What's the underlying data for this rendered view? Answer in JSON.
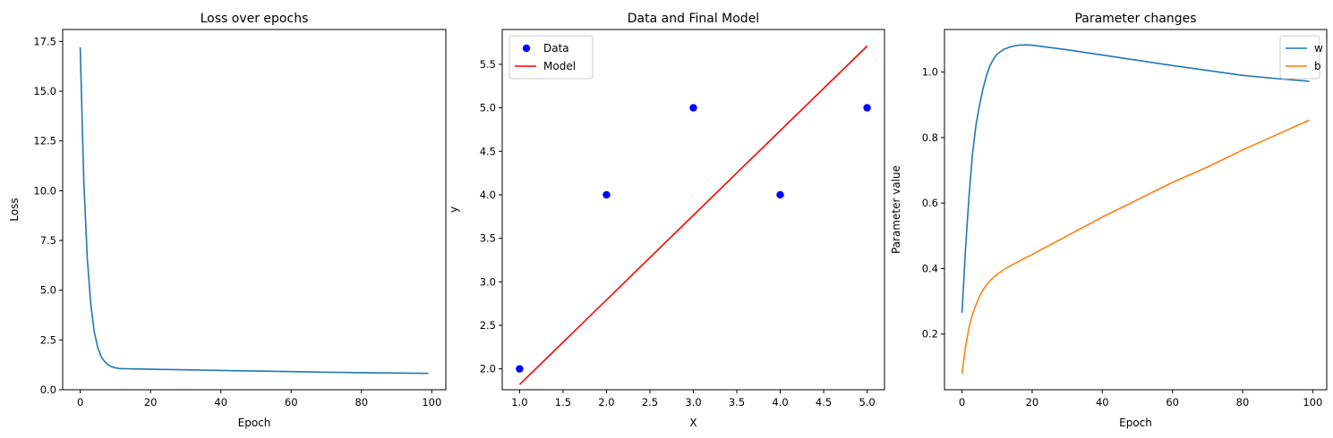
{
  "chart_data": [
    {
      "type": "line",
      "title": "Loss over epochs",
      "xlabel": "Epoch",
      "ylabel": "Loss",
      "xlim": [
        -5,
        104
      ],
      "ylim": [
        0,
        18.1
      ],
      "xticks": [
        0,
        20,
        40,
        60,
        80,
        100
      ],
      "yticks": [
        0.0,
        2.5,
        5.0,
        7.5,
        10.0,
        12.5,
        15.0,
        17.5
      ],
      "xtick_labels": [
        "0",
        "20",
        "40",
        "60",
        "80",
        "100"
      ],
      "ytick_labels": [
        "0.0",
        "2.5",
        "5.0",
        "7.5",
        "10.0",
        "12.5",
        "15.0",
        "17.5"
      ],
      "colors": {
        "loss": "#1f77b4"
      },
      "series": [
        {
          "key": "loss",
          "x": [
            0,
            1,
            2,
            3,
            4,
            5,
            6,
            7,
            8,
            9,
            10,
            11,
            12,
            13,
            14,
            15,
            20,
            30,
            40,
            50,
            60,
            70,
            80,
            90,
            99
          ],
          "values": [
            17.2,
            10.5,
            6.6,
            4.3,
            2.9,
            2.1,
            1.65,
            1.4,
            1.25,
            1.15,
            1.1,
            1.07,
            1.06,
            1.055,
            1.05,
            1.045,
            1.03,
            1.0,
            0.97,
            0.94,
            0.91,
            0.88,
            0.86,
            0.84,
            0.82
          ]
        }
      ]
    },
    {
      "type": "scatter",
      "title": "Data and Final Model",
      "xlabel": "X",
      "ylabel": "y",
      "xlim": [
        0.8,
        5.2
      ],
      "ylim": [
        1.76,
        5.9
      ],
      "xticks": [
        1.0,
        1.5,
        2.0,
        2.5,
        3.0,
        3.5,
        4.0,
        4.5,
        5.0
      ],
      "yticks": [
        2.0,
        2.5,
        3.0,
        3.5,
        4.0,
        4.5,
        5.0,
        5.5
      ],
      "xtick_labels": [
        "1.0",
        "1.5",
        "2.0",
        "2.5",
        "3.0",
        "3.5",
        "4.0",
        "4.5",
        "5.0"
      ],
      "ytick_labels": [
        "2.0",
        "2.5",
        "3.0",
        "3.5",
        "4.0",
        "4.5",
        "5.0",
        "5.5"
      ],
      "legend": {
        "position": "upper-left",
        "entries": [
          "Data",
          "Model"
        ]
      },
      "colors": {
        "data": "#0000ff",
        "model": "#ff0000"
      },
      "series": [
        {
          "name": "Data",
          "kind": "scatter",
          "x": [
            1,
            2,
            3,
            4,
            5
          ],
          "values": [
            2,
            4,
            5,
            4,
            5
          ]
        },
        {
          "name": "Model",
          "kind": "line",
          "x": [
            1,
            5
          ],
          "values": [
            1.82,
            5.71
          ]
        }
      ]
    },
    {
      "type": "line",
      "title": "Parameter changes",
      "xlabel": "Epoch",
      "ylabel": "Parameter value",
      "xlim": [
        -5,
        104
      ],
      "ylim": [
        0.03,
        1.13
      ],
      "xticks": [
        0,
        20,
        40,
        60,
        80,
        100
      ],
      "yticks": [
        0.2,
        0.4,
        0.6,
        0.8,
        1.0
      ],
      "xtick_labels": [
        "0",
        "20",
        "40",
        "60",
        "80",
        "100"
      ],
      "ytick_labels": [
        "0.2",
        "0.4",
        "0.6",
        "0.8",
        "1.0"
      ],
      "legend": {
        "position": "upper-right",
        "entries": [
          "w",
          "b"
        ]
      },
      "colors": {
        "w": "#1f77b4",
        "b": "#ff7f0e"
      },
      "series": [
        {
          "name": "w",
          "x": [
            0,
            1,
            2,
            3,
            4,
            5,
            6,
            7,
            8,
            9,
            10,
            12,
            14,
            16,
            18,
            20,
            30,
            40,
            50,
            60,
            70,
            80,
            90,
            99
          ],
          "values": [
            0.265,
            0.46,
            0.62,
            0.75,
            0.84,
            0.9,
            0.95,
            0.99,
            1.02,
            1.04,
            1.055,
            1.07,
            1.078,
            1.082,
            1.083,
            1.082,
            1.068,
            1.052,
            1.036,
            1.02,
            1.005,
            0.99,
            0.98,
            0.972
          ]
        },
        {
          "name": "b",
          "x": [
            0,
            1,
            2,
            3,
            4,
            5,
            6,
            7,
            8,
            9,
            10,
            12,
            14,
            16,
            18,
            20,
            30,
            40,
            50,
            60,
            70,
            80,
            90,
            99
          ],
          "values": [
            0.08,
            0.16,
            0.22,
            0.26,
            0.29,
            0.315,
            0.335,
            0.35,
            0.363,
            0.373,
            0.382,
            0.397,
            0.41,
            0.421,
            0.432,
            0.443,
            0.5,
            0.557,
            0.61,
            0.663,
            0.71,
            0.762,
            0.81,
            0.853
          ]
        }
      ]
    }
  ]
}
